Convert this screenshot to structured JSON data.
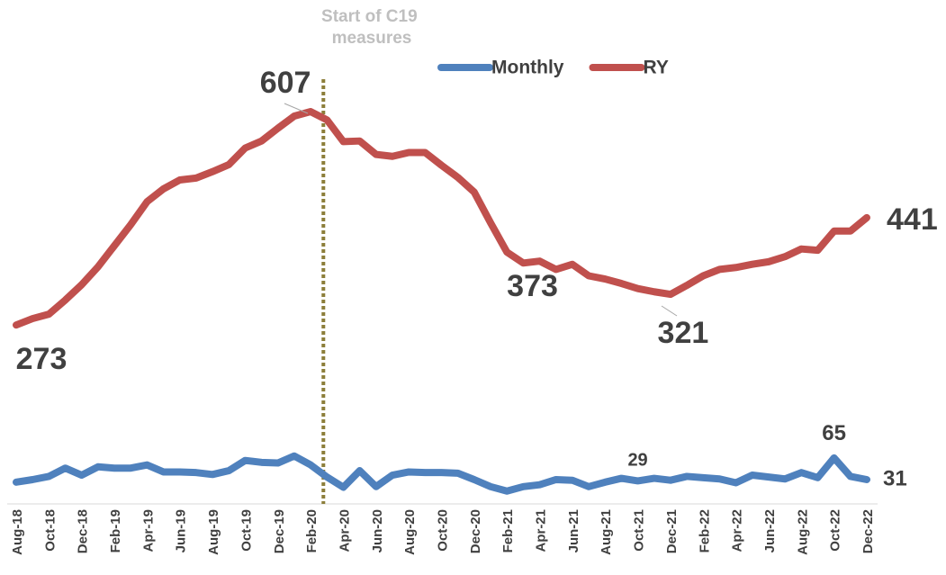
{
  "chart_data": {
    "type": "line",
    "categories": [
      "Aug-18",
      null,
      "Oct-18",
      null,
      "Dec-18",
      null,
      "Feb-19",
      null,
      "Apr-19",
      null,
      "Jun-19",
      null,
      "Aug-19",
      null,
      "Oct-19",
      null,
      "Dec-19",
      null,
      "Feb-20",
      null,
      "Apr-20",
      null,
      "Jun-20",
      null,
      "Aug-20",
      null,
      "Oct-20",
      null,
      "Dec-20",
      null,
      "Feb-21",
      null,
      "Apr-21",
      null,
      "Jun-21",
      null,
      "Aug-21",
      null,
      "Oct-21",
      null,
      "Dec-21",
      null,
      "Feb-22",
      null,
      "Apr-22",
      null,
      "Jun-22",
      null,
      "Aug-22",
      null,
      "Oct-22",
      null,
      "Dec-22"
    ],
    "series": [
      {
        "name": "Monthly",
        "color": "#4f81bd",
        "values": [
          27,
          31,
          36,
          49,
          38,
          51,
          49,
          49,
          54,
          43,
          43,
          42,
          39,
          45,
          61,
          58,
          57,
          68,
          54,
          35,
          19,
          45,
          20,
          38,
          43,
          42,
          42,
          41,
          31,
          20,
          13,
          20,
          23,
          31,
          30,
          20,
          27,
          33,
          29,
          33,
          30,
          36,
          34,
          32,
          26,
          38,
          35,
          32,
          42,
          34,
          65,
          36,
          31
        ],
        "labeled_points": [
          38,
          50,
          52
        ]
      },
      {
        "name": "RY",
        "color": "#c0504d",
        "values": [
          273,
          283,
          290,
          312,
          336,
          364,
          397,
          430,
          466,
          486,
          500,
          503,
          513,
          524,
          550,
          561,
          581,
          600,
          607,
          594,
          560,
          561,
          540,
          537,
          543,
          543,
          523,
          504,
          481,
          433,
          387,
          370,
          373,
          360,
          368,
          350,
          345,
          338,
          330,
          325,
          321,
          335,
          350,
          360,
          363,
          368,
          372,
          380,
          392,
          390,
          420,
          420,
          441
        ],
        "labeled_points": [
          0,
          18,
          32,
          40,
          52
        ]
      }
    ],
    "annotation": {
      "lines": [
        "Start of C19",
        "measures"
      ],
      "at": 19
    },
    "legend": "top"
  }
}
